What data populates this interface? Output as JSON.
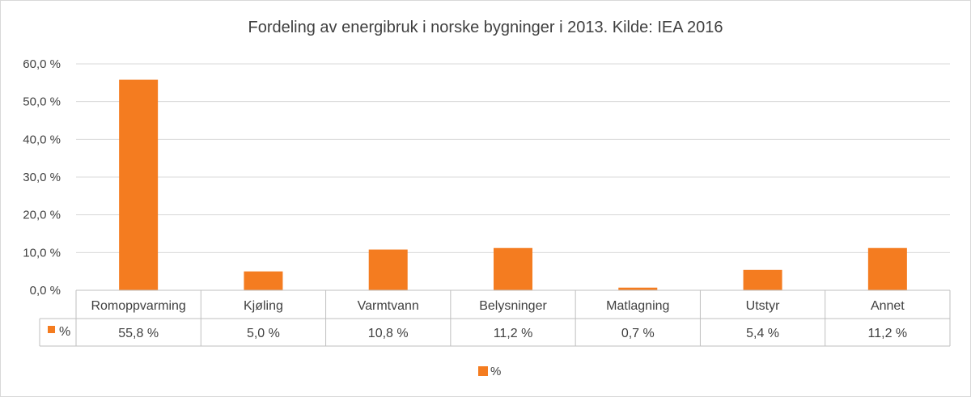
{
  "chart_data": {
    "type": "bar",
    "title": "Fordeling av energibruk i norske bygninger i 2013.  Kilde: IEA 2016",
    "categories": [
      "Romoppvarming",
      "Kjøling",
      "Varmtvann",
      "Belysninger",
      "Matlagning",
      "Utstyr",
      "Annet"
    ],
    "series": [
      {
        "name": "%",
        "values": [
          55.8,
          5.0,
          10.8,
          11.2,
          0.7,
          5.4,
          11.2
        ],
        "value_labels": [
          "55,8 %",
          "5,0 %",
          "10,8 %",
          "11,2 %",
          "0,7 %",
          "5,4 %",
          "11,2 %"
        ],
        "color": "#f47c20"
      }
    ],
    "ylim": [
      0,
      60
    ],
    "yticks": [
      0,
      10,
      20,
      30,
      40,
      50,
      60
    ],
    "ytick_labels": [
      "0,0 %",
      "10,0 %",
      "20,0 %",
      "30,0 %",
      "40,0 %",
      "50,0 %",
      "60,0 %"
    ],
    "grid": true,
    "data_table": true,
    "legend": {
      "label": "%",
      "placement": "bottom"
    }
  }
}
